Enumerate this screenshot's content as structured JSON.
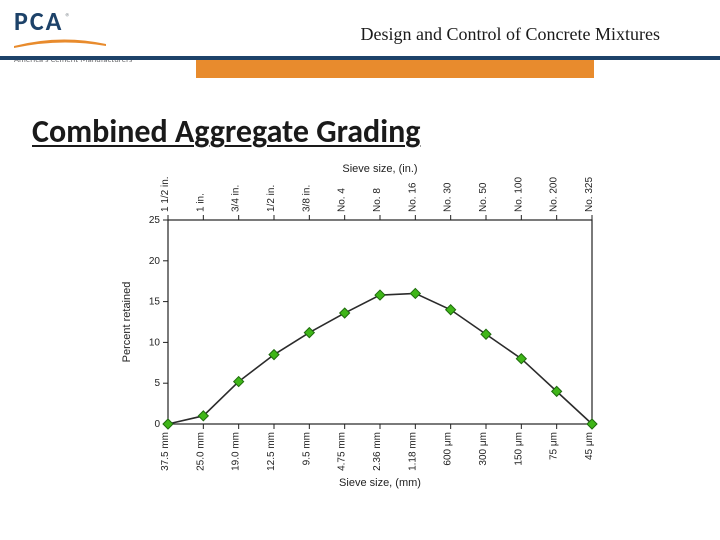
{
  "header": {
    "logo_text": "PCA",
    "logo_tag": "America's Cement Manufacturers™",
    "title": "Design and Control of Concrete Mixtures",
    "rule_color": "#1d4269",
    "accent_color": "#e88b2d"
  },
  "slide": {
    "title": "Combined Aggregate Grading"
  },
  "chart": {
    "type": "line",
    "x_axis_top_title": "Sieve size, (in.)",
    "x_axis_bottom_title": "Sieve size, (mm)",
    "y_axis_title": "Percent retained",
    "ylim": [
      0,
      25
    ],
    "ytick_step": 5,
    "yticks": [
      0,
      5,
      10,
      15,
      20,
      25
    ],
    "top_labels": [
      "1 1/2 in.",
      "1 in.",
      "3/4 in.",
      "1/2 in.",
      "3/8 in.",
      "No. 4",
      "No. 8",
      "No. 16",
      "No. 30",
      "No. 50",
      "No. 100",
      "No. 200",
      "No. 325"
    ],
    "bottom_labels": [
      "37.5 mm",
      "25.0 mm",
      "19.0 mm",
      "12.5 mm",
      "9.5 mm",
      "4.75 mm",
      "2.36 mm",
      "1.18 mm",
      "600 μm",
      "300 μm",
      "150 μm",
      "75 μm",
      "45 μm"
    ],
    "values": [
      0.0,
      1.0,
      5.2,
      8.5,
      11.2,
      13.6,
      15.8,
      16.0,
      14.0,
      11.0,
      8.0,
      4.0,
      0.0
    ],
    "line_color": "#2b2b2b",
    "line_width": 1.6,
    "marker_fill": "#3fb618",
    "marker_stroke": "#1e6b0d",
    "marker_size": 5,
    "plot_bg": "#ffffff",
    "axis_color": "#222222",
    "label_fontsize": 10,
    "title_fontsize": 11
  }
}
